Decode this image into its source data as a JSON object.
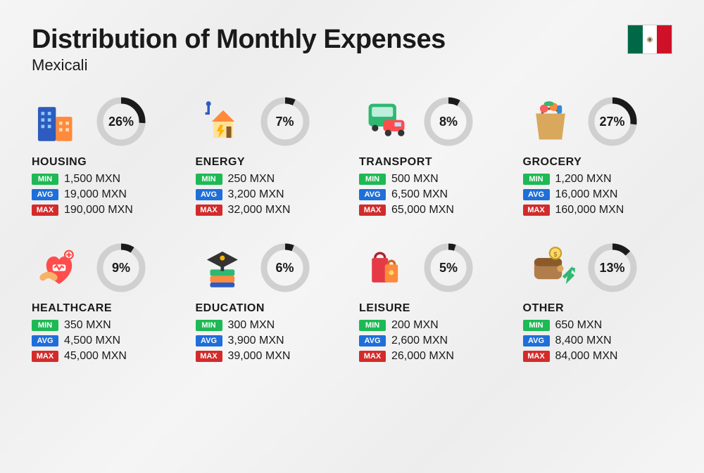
{
  "title": "Distribution of Monthly Expenses",
  "subtitle": "Mexicali",
  "currency": "MXN",
  "flag_colors": [
    "#006847",
    "#ffffff",
    "#ce1126"
  ],
  "tag_colors": {
    "min": "#1db954",
    "avg": "#1e6fd9",
    "max": "#d32b2b"
  },
  "ring_colors": {
    "bg": "#d0d0d0",
    "fg": "#1a1a1a"
  },
  "labels": {
    "min": "MIN",
    "avg": "AVG",
    "max": "MAX"
  },
  "categories": [
    {
      "name": "HOUSING",
      "pct": 26,
      "min": "1,500",
      "avg": "19,000",
      "max": "190,000",
      "icon": "housing"
    },
    {
      "name": "ENERGY",
      "pct": 7,
      "min": "250",
      "avg": "3,200",
      "max": "32,000",
      "icon": "energy"
    },
    {
      "name": "TRANSPORT",
      "pct": 8,
      "min": "500",
      "avg": "6,500",
      "max": "65,000",
      "icon": "transport"
    },
    {
      "name": "GROCERY",
      "pct": 27,
      "min": "1,200",
      "avg": "16,000",
      "max": "160,000",
      "icon": "grocery"
    },
    {
      "name": "HEALTHCARE",
      "pct": 9,
      "min": "350",
      "avg": "4,500",
      "max": "45,000",
      "icon": "healthcare"
    },
    {
      "name": "EDUCATION",
      "pct": 6,
      "min": "300",
      "avg": "3,900",
      "max": "39,000",
      "icon": "education"
    },
    {
      "name": "LEISURE",
      "pct": 5,
      "min": "200",
      "avg": "2,600",
      "max": "26,000",
      "icon": "leisure"
    },
    {
      "name": "OTHER",
      "pct": 13,
      "min": "650",
      "avg": "8,400",
      "max": "84,000",
      "icon": "other"
    }
  ]
}
